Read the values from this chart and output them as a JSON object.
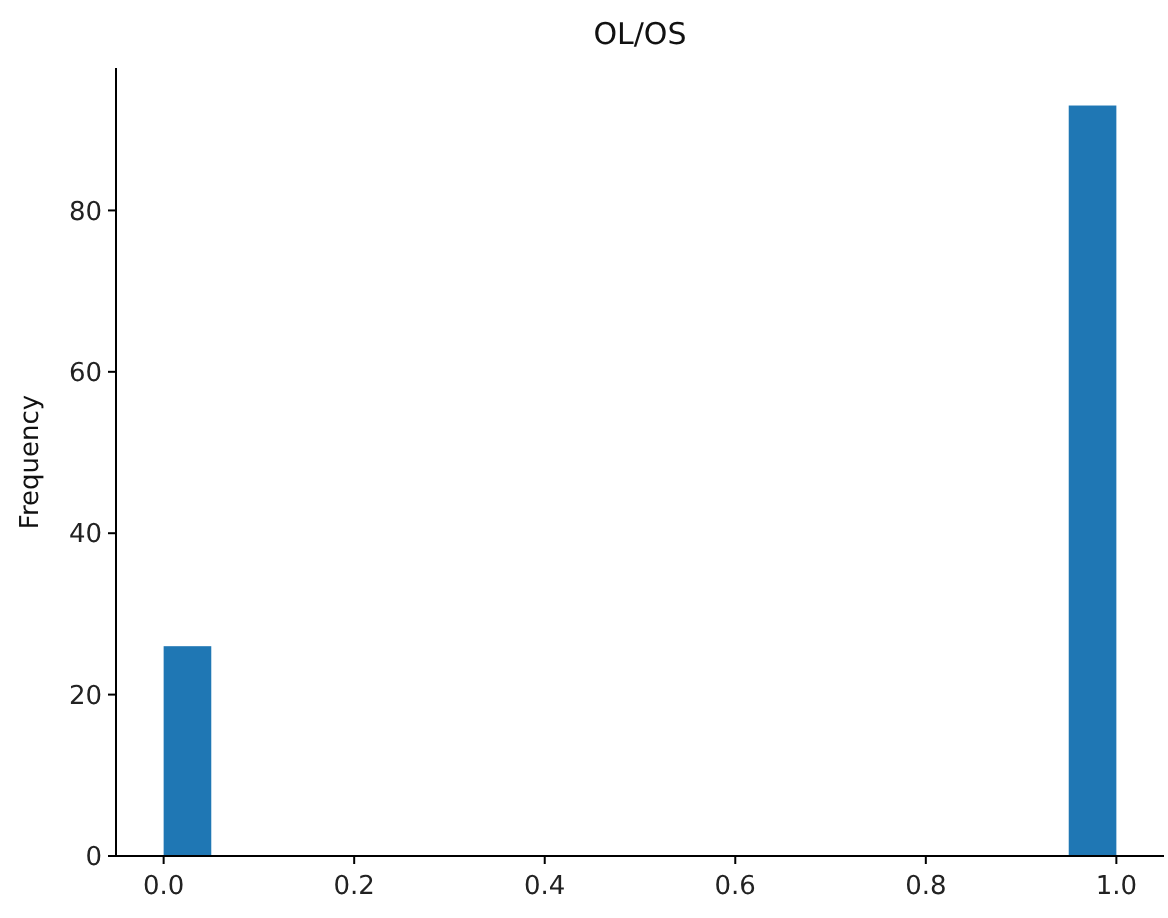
{
  "chart_data": {
    "type": "histogram",
    "title": "OL/OS",
    "ylabel": "Frequency",
    "bins": [
      0,
      0.05,
      0.1,
      0.15,
      0.2,
      0.25,
      0.3,
      0.35,
      0.4,
      0.45,
      0.5,
      0.55,
      0.6,
      0.65,
      0.7,
      0.75,
      0.8,
      0.85,
      0.9,
      0.95,
      1
    ],
    "values": [
      26,
      0,
      0,
      0,
      0,
      0,
      0,
      0,
      0,
      0,
      0,
      0,
      0,
      0,
      0,
      0,
      0,
      0,
      0,
      93
    ],
    "color": "#1f77b4",
    "xlim": [
      -0.05,
      1.05
    ],
    "xticks": [
      {
        "value": 0,
        "label": "0.0"
      },
      {
        "value": 0.2,
        "label": "0.2"
      },
      {
        "value": 0.4,
        "label": "0.4"
      },
      {
        "value": 0.6,
        "label": "0.6"
      },
      {
        "value": 0.8,
        "label": "0.8"
      },
      {
        "value": 1,
        "label": "1.0"
      }
    ],
    "ylim": [
      0,
      97.65
    ],
    "yticks": [
      0,
      20,
      40,
      60,
      80
    ],
    "grid": false
  }
}
